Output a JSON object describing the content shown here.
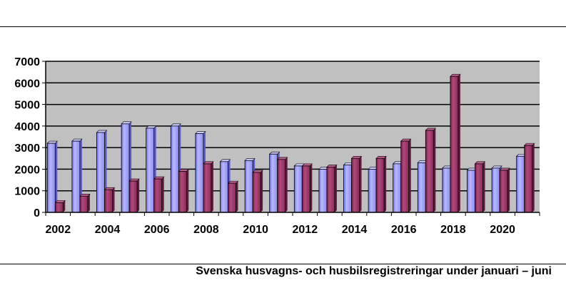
{
  "caption": "Svenska husvagns- och husbilsregistreringar under januari – juni",
  "chart_data": {
    "type": "bar",
    "title": "Svenska husvagns- och husbilsregistreringar under januari – juni",
    "xlabel": "",
    "ylabel": "",
    "categories": [
      "2002",
      "2003",
      "2004",
      "2005",
      "2006",
      "2007",
      "2008",
      "2009",
      "2010",
      "2011",
      "2012",
      "2013",
      "2014",
      "2015",
      "2016",
      "2017",
      "2018",
      "2019",
      "2020",
      "2021"
    ],
    "x_tick_labels": [
      "2002",
      "2004",
      "2006",
      "2008",
      "2010",
      "2012",
      "2014",
      "2016",
      "2018",
      "2020"
    ],
    "y_tick_labels": [
      "0",
      "1000",
      "2000",
      "3000",
      "4000",
      "5000",
      "6000",
      "7000"
    ],
    "ylim": [
      0,
      7000
    ],
    "grid": true,
    "legend": "none",
    "series": [
      {
        "color": "#9999ff",
        "values": [
          3200,
          3300,
          3700,
          4100,
          3900,
          4000,
          3650,
          2350,
          2400,
          2700,
          2150,
          2000,
          2200,
          2000,
          2250,
          2300,
          2050,
          1950,
          2050,
          2600
        ]
      },
      {
        "color": "#993366",
        "values": [
          450,
          750,
          1050,
          1450,
          1550,
          1900,
          2250,
          1350,
          1850,
          2450,
          2150,
          2100,
          2500,
          2500,
          3300,
          3800,
          6300,
          2250,
          1950,
          3100
        ]
      }
    ],
    "colors": {
      "plot_bg": "#c0c0c0",
      "gridline": "#000000"
    }
  }
}
